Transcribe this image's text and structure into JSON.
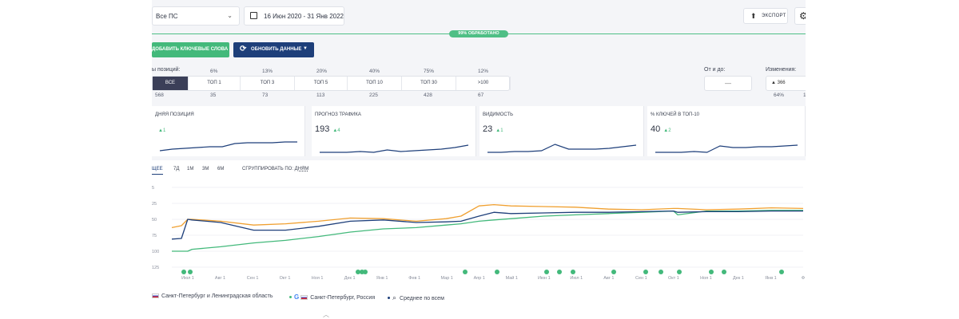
{
  "toolbar": {
    "search_engine_select": "Все ПС",
    "date_range": "16 Июн 2020 - 31 Янв 2022",
    "export_label": "ЭКСПОРТ"
  },
  "progress": {
    "label": "99% ОБРАБОТАНО",
    "value_percent": 99
  },
  "actions": {
    "add_keywords": "ДОБАВИТЬ КЛЮЧЕВЫЕ СЛОВА",
    "refresh_data": "ОБНОВИТЬ ДАННЫЕ"
  },
  "positions": {
    "label": "ы позиций:",
    "segments": [
      {
        "label": "ВСЕ",
        "pct": "",
        "count": "568"
      },
      {
        "label": "ТОП 1",
        "pct": "6%",
        "count": "35"
      },
      {
        "label": "ТОП 3",
        "pct": "13%",
        "count": "73"
      },
      {
        "label": "ТОП 5",
        "pct": "20%",
        "count": "113"
      },
      {
        "label": "ТОП 10",
        "pct": "40%",
        "count": "225"
      },
      {
        "label": "ТОП 30",
        "pct": "75%",
        "count": "428"
      },
      {
        "label": ">100",
        "pct": "12%",
        "count": "67"
      }
    ]
  },
  "range": {
    "label": "От и до:",
    "value": "—"
  },
  "changes": {
    "label": "Изменения:",
    "up_value": "▲ 366",
    "up_pct": "64%",
    "down_pct": "1"
  },
  "kpis": [
    {
      "title": "ДНЯЯ ПОЗИЦИЯ",
      "value": "",
      "delta": "▲1"
    },
    {
      "title": "ПРОГНОЗ ТРАФИКА",
      "value": "193",
      "delta": "▲4"
    },
    {
      "title": "ВИДИМОСТЬ",
      "value": "23",
      "delta": "▲1"
    },
    {
      "title": "% КЛЮЧЕЙ В ТОП-10",
      "value": "40",
      "delta": "▲2"
    }
  ],
  "periods": [
    "ЩЕЕ",
    "7Д",
    "1М",
    "3М",
    "6М"
  ],
  "group_by": {
    "label": "СГРУППИРОВАТЬ ПО:",
    "value": "ДНЯМ"
  },
  "legend": [
    {
      "label": "Санкт-Петербург и Ленинградская область",
      "color": "#f0a030"
    },
    {
      "label": "Санкт-Петербург, Россия",
      "color": "#43b97b"
    },
    {
      "label": "Среднее по всем",
      "color": "#1e3f7a"
    }
  ],
  "colors": {
    "orange": "#f0a030",
    "green": "#43b97b",
    "navy": "#1e3f7a"
  },
  "chart_data": {
    "type": "line",
    "y_tick_labels": [
      "5",
      "25",
      "50",
      "75",
      "100",
      "125"
    ],
    "x_tick_labels": [
      "Июл 1",
      "Авг 1",
      "Сен 1",
      "Окт 1",
      "Ноя 1",
      "Дек 1",
      "Янв 1",
      "Фев 1",
      "Мар 1",
      "Апр 1",
      "Май 1",
      "Июн 1",
      "Июл 1",
      "Авг 1",
      "Сен 1",
      "Окт 1",
      "Ноя 1",
      "Дек 1",
      "Янв 1",
      "Ф"
    ],
    "ylim": [
      0,
      125
    ],
    "x": [
      "2020-06-16",
      "2020-06-25",
      "2020-07-01",
      "2020-07-05",
      "2020-08-01",
      "2020-09-01",
      "2020-10-01",
      "2020-11-01",
      "2020-12-01",
      "2021-01-01",
      "2021-02-01",
      "2021-03-01",
      "2021-03-15",
      "2021-04-01",
      "2021-04-15",
      "2021-05-01",
      "2021-06-01",
      "2021-07-01",
      "2021-08-01",
      "2021-09-01",
      "2021-10-01",
      "2021-10-05",
      "2021-11-01",
      "2021-12-01",
      "2022-01-01",
      "2022-01-31"
    ],
    "series": [
      {
        "name": "Санкт-Петербург и Ленинградская область",
        "color": "#f0a030",
        "values": [
          62,
          65,
          75,
          75,
          72,
          66,
          68,
          72,
          77,
          76,
          72,
          76,
          80,
          96,
          98,
          96,
          95,
          94,
          91,
          90,
          92,
          92,
          90,
          91,
          93,
          92
        ]
      },
      {
        "name": "Санкт-Петербург, Россия",
        "color": "#43b97b",
        "values": [
          25,
          25,
          25,
          28,
          32,
          38,
          42,
          48,
          55,
          60,
          62,
          66,
          68,
          72,
          74,
          76,
          80,
          82,
          84,
          86,
          88,
          82,
          88,
          88,
          89,
          89
        ]
      },
      {
        "name": "Среднее по всем",
        "color": "#1e3f7a",
        "values": [
          44,
          45,
          75,
          74,
          70,
          58,
          58,
          64,
          72,
          74,
          70,
          71,
          72,
          80,
          86,
          84,
          85,
          86,
          86,
          87,
          88,
          86,
          87,
          87,
          88,
          88
        ]
      }
    ]
  }
}
